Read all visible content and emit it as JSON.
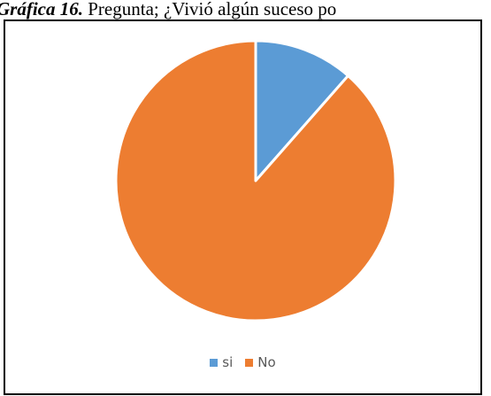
{
  "caption": {
    "label": "Gráfica 16.",
    "text": " Pregunta; ¿Vivió algún suceso po"
  },
  "chart_data": {
    "type": "pie",
    "title": "",
    "start_angle_deg": 0,
    "direction": "clockwise",
    "categories": [
      "si",
      "No"
    ],
    "values": [
      11.5,
      88.5
    ],
    "colors": [
      "#5B9BD5",
      "#ED7D31"
    ],
    "legend_position": "bottom"
  }
}
